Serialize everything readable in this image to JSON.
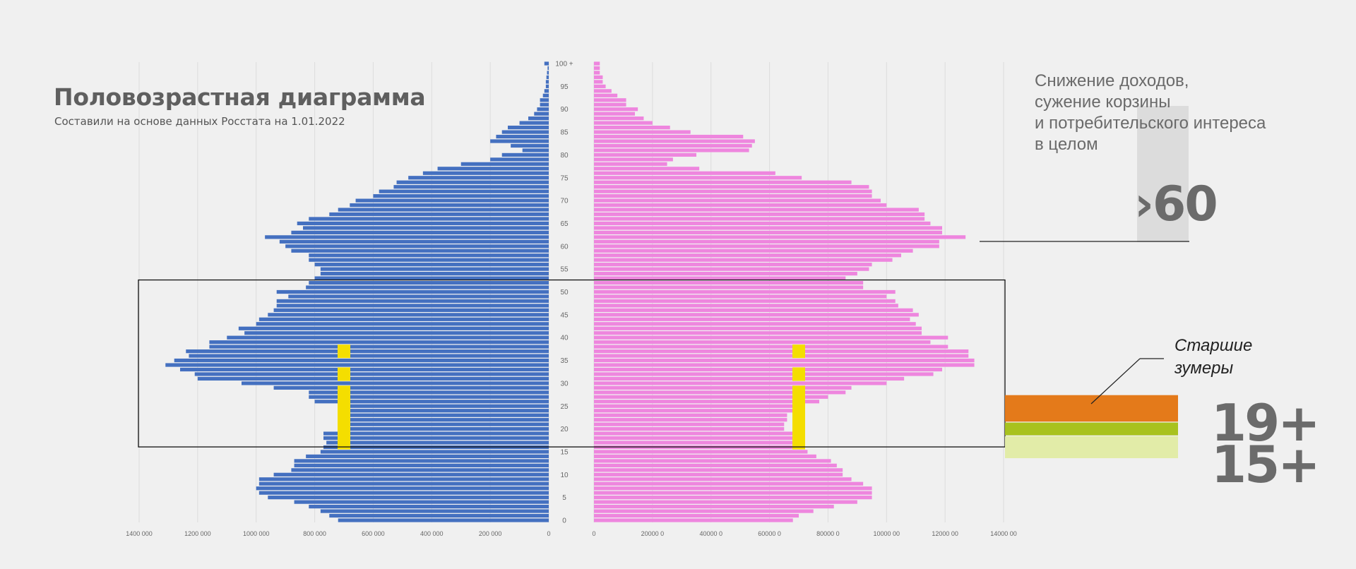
{
  "header": {
    "title": "Половозрастная диаграмма",
    "subtitle": "Составили на основе данных Росстата на 1.01.2022"
  },
  "annotations": {
    "income_lines": [
      "Снижение доходов,",
      "сужение корзины",
      "и потребительского интереса",
      "в целом"
    ],
    "over60": "›60",
    "zoomers_lines": [
      "Старшие",
      "зумеры"
    ],
    "age19": "19+",
    "age15": "15+"
  },
  "colors": {
    "male": "#4470c0",
    "female": "#ee86de",
    "highlight": "#f4de00",
    "band_orange": "#e47a1a",
    "band_green": "#a8c21e",
    "band_lightgreen": "#e2eca8",
    "text_gray": "#6b6b6b"
  },
  "chart_data": {
    "type": "bar",
    "orientation": "horizontal",
    "title": "Половозрастная диаграмма",
    "age_labels": [
      "0",
      "5",
      "10",
      "15",
      "20",
      "25",
      "30",
      "35",
      "40",
      "45",
      "50",
      "55",
      "60",
      "65",
      "70",
      "75",
      "80",
      "85",
      "90",
      "95",
      "100 +"
    ],
    "male_axis_ticks": [
      "1400 000",
      "1200 000",
      "1000 000",
      "800 000",
      "600 000",
      "400 000",
      "200 000",
      "0"
    ],
    "female_axis_ticks": [
      "0",
      "20000 0",
      "40000 0",
      "60000 0",
      "80000 0",
      "10000 00",
      "12000 00",
      "14000 00"
    ],
    "xlim": [
      0,
      1400000
    ],
    "ages": [
      0,
      1,
      2,
      3,
      4,
      5,
      6,
      7,
      8,
      9,
      10,
      11,
      12,
      13,
      14,
      15,
      16,
      17,
      18,
      19,
      20,
      21,
      22,
      23,
      24,
      25,
      26,
      27,
      28,
      29,
      30,
      31,
      32,
      33,
      34,
      35,
      36,
      37,
      38,
      39,
      40,
      41,
      42,
      43,
      44,
      45,
      46,
      47,
      48,
      49,
      50,
      51,
      52,
      53,
      54,
      55,
      56,
      57,
      58,
      59,
      60,
      61,
      62,
      63,
      64,
      65,
      66,
      67,
      68,
      69,
      70,
      71,
      72,
      73,
      74,
      75,
      76,
      77,
      78,
      79,
      80,
      81,
      82,
      83,
      84,
      85,
      86,
      87,
      88,
      89,
      90,
      91,
      92,
      93,
      94,
      95,
      96,
      97,
      98,
      99,
      100
    ],
    "series": [
      {
        "name": "male",
        "values": [
          720000,
          750000,
          780000,
          820000,
          870000,
          960000,
          990000,
          1000000,
          990000,
          990000,
          940000,
          880000,
          870000,
          870000,
          830000,
          780000,
          770000,
          760000,
          770000,
          770000,
          690000,
          690000,
          680000,
          690000,
          690000,
          700000,
          800000,
          820000,
          820000,
          940000,
          1050000,
          1200000,
          1210000,
          1260000,
          1310000,
          1280000,
          1230000,
          1240000,
          1160000,
          1160000,
          1100000,
          1040000,
          1060000,
          1000000,
          990000,
          960000,
          940000,
          930000,
          930000,
          890000,
          930000,
          830000,
          820000,
          800000,
          780000,
          780000,
          800000,
          820000,
          820000,
          880000,
          900000,
          920000,
          970000,
          880000,
          840000,
          860000,
          820000,
          750000,
          720000,
          680000,
          660000,
          600000,
          580000,
          530000,
          520000,
          480000,
          430000,
          380000,
          300000,
          200000,
          160000,
          90000,
          130000,
          200000,
          180000,
          160000,
          140000,
          100000,
          70000,
          50000,
          40000,
          30000,
          30000,
          20000,
          15000,
          10000,
          10000,
          8000,
          6000,
          4000,
          15000
        ]
      },
      {
        "name": "female",
        "values": [
          680000,
          700000,
          750000,
          820000,
          900000,
          950000,
          950000,
          950000,
          920000,
          880000,
          850000,
          850000,
          830000,
          810000,
          760000,
          730000,
          710000,
          710000,
          700000,
          700000,
          650000,
          650000,
          660000,
          660000,
          700000,
          720000,
          770000,
          800000,
          860000,
          880000,
          1000000,
          1060000,
          1160000,
          1190000,
          1300000,
          1300000,
          1280000,
          1280000,
          1210000,
          1150000,
          1210000,
          1120000,
          1120000,
          1100000,
          1080000,
          1110000,
          1090000,
          1040000,
          1030000,
          1000000,
          1030000,
          920000,
          920000,
          860000,
          900000,
          940000,
          950000,
          1020000,
          1050000,
          1090000,
          1180000,
          1180000,
          1270000,
          1190000,
          1190000,
          1150000,
          1130000,
          1130000,
          1110000,
          1000000,
          980000,
          950000,
          950000,
          940000,
          880000,
          710000,
          620000,
          360000,
          250000,
          270000,
          350000,
          530000,
          540000,
          550000,
          510000,
          330000,
          260000,
          200000,
          170000,
          140000,
          150000,
          110000,
          110000,
          80000,
          60000,
          40000,
          30000,
          30000,
          20000,
          20000,
          20000
        ]
      }
    ],
    "highlight_ages": [
      {
        "from": 16,
        "to": 29
      },
      {
        "from": 31,
        "to": 33
      },
      {
        "from": 36,
        "to": 38
      }
    ],
    "highlight_level": 700000,
    "annotation_box_ages": [
      19,
      52
    ],
    "over60_line_age": 61,
    "age_bands": [
      {
        "name": "19+",
        "from": 22,
        "to": 27
      },
      {
        "name": "15+ (green)",
        "from": 19,
        "to": 21
      },
      {
        "name": "15+ (light)",
        "from": 14,
        "to": 18
      }
    ]
  }
}
